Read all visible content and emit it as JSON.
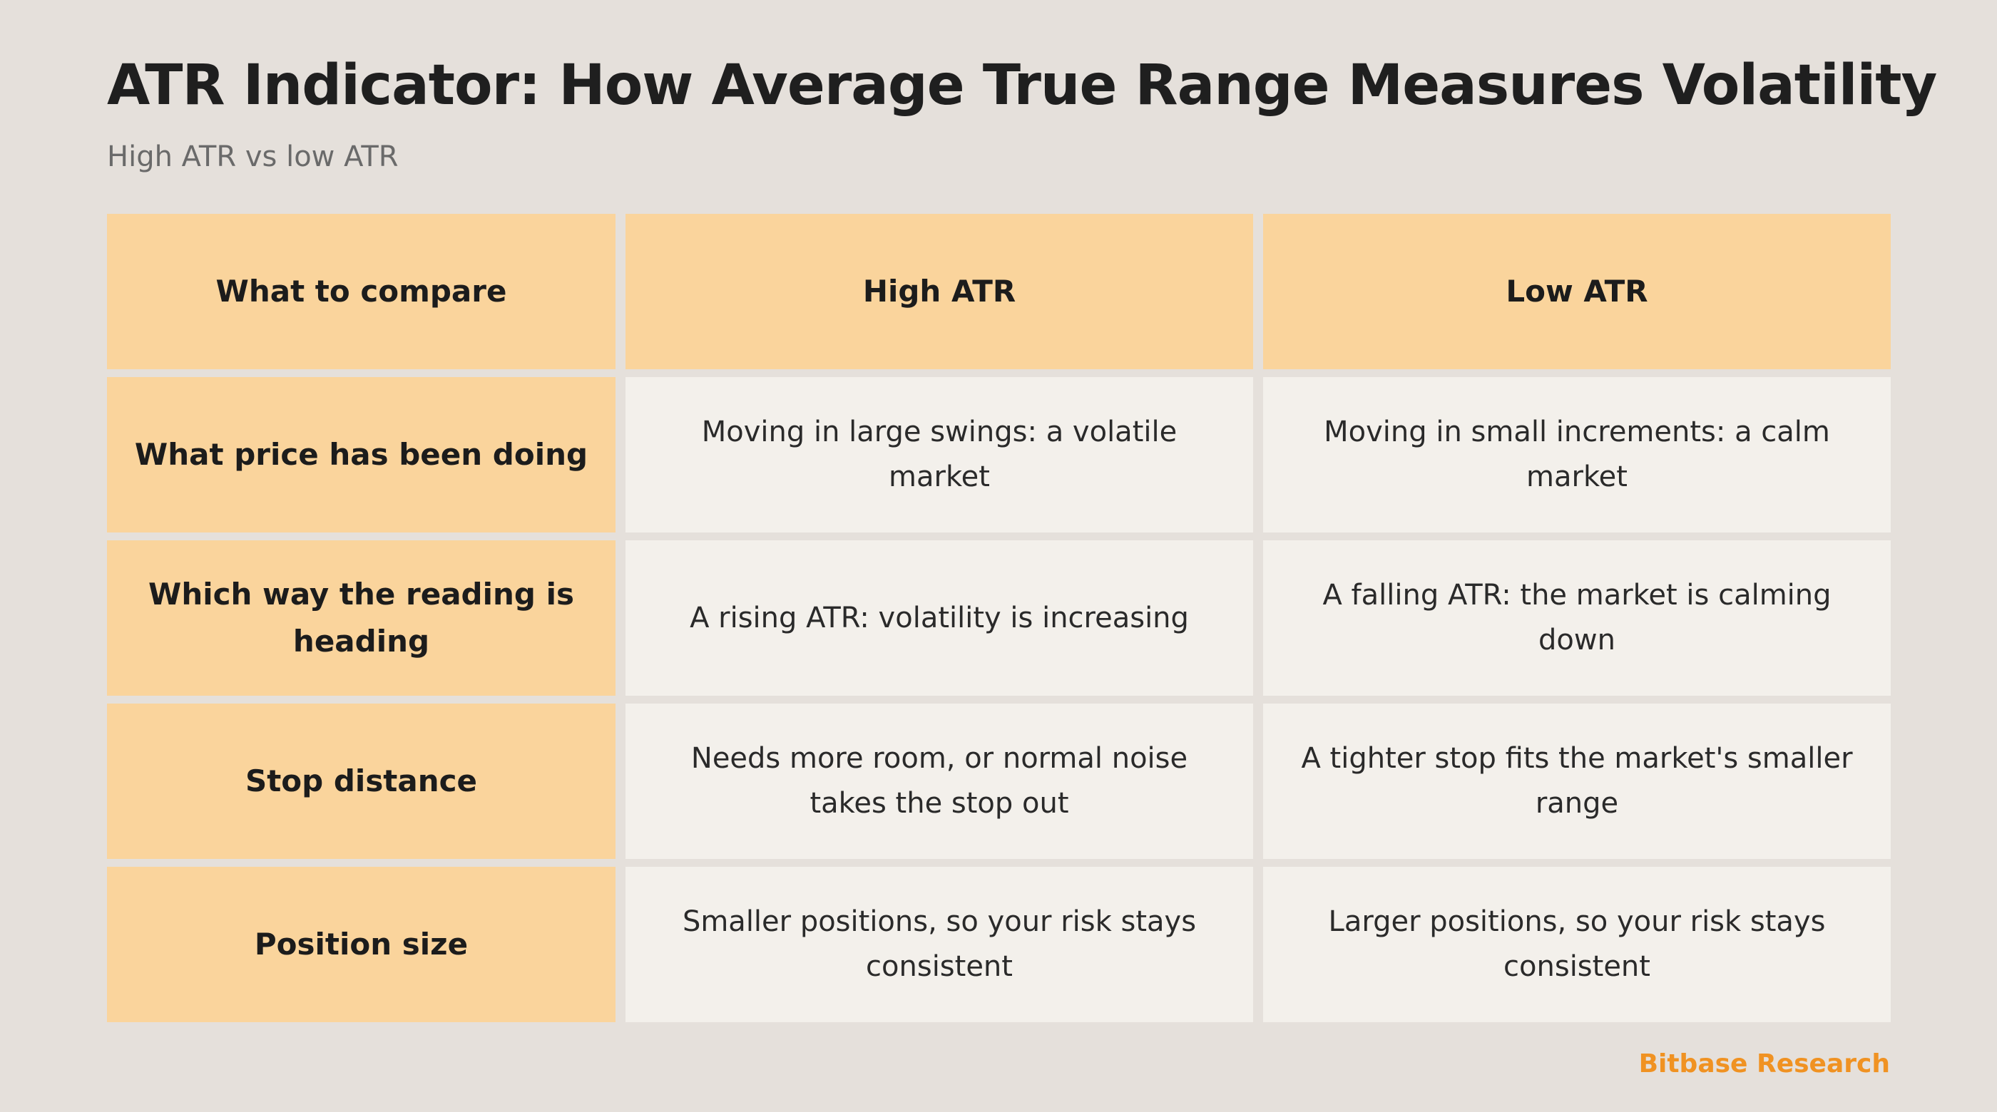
{
  "header": {
    "title": "ATR Indicator: How Average True Range Measures Volatility",
    "subtitle": "High ATR vs low ATR"
  },
  "table": {
    "columns": [
      "What to compare",
      "High ATR",
      "Low ATR"
    ],
    "rows": [
      {
        "label": "What price has been doing",
        "high": "Moving in large swings: a volatile market",
        "low": "Moving in small increments: a calm market"
      },
      {
        "label": "Which way the reading is heading",
        "high": "A rising ATR: volatility is increasing",
        "low": "A falling ATR: the market is calming down"
      },
      {
        "label": "Stop distance",
        "high": "Needs more room, or normal noise takes the stop out",
        "low": "A tighter stop fits the market's smaller range"
      },
      {
        "label": "Position size",
        "high": "Smaller positions, so your risk stays consistent",
        "low": "Larger positions, so your risk stays consistent"
      }
    ]
  },
  "footer": {
    "brand": "Bitbase Research"
  },
  "colors": {
    "background": "#e5e0db",
    "header_cell": "#fad49c",
    "body_cell": "#f3f0eb",
    "brand_accent": "#f09222"
  }
}
